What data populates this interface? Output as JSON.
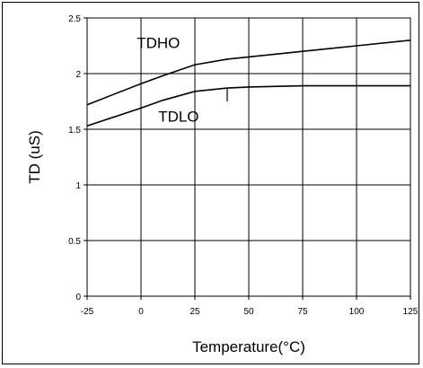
{
  "chart_data": {
    "type": "line",
    "title": "",
    "xlabel": "Temperature(°C)",
    "ylabel": "TD (uS)",
    "xlim": [
      -25,
      125
    ],
    "ylim": [
      0,
      2.5
    ],
    "x_ticks": [
      -25,
      0,
      25,
      50,
      75,
      100,
      125
    ],
    "x_tick_labels": [
      "-25",
      "0",
      "25",
      "50",
      "75",
      "100",
      "125"
    ],
    "y_ticks": [
      0,
      0.5,
      1,
      1.5,
      2,
      2.5
    ],
    "y_tick_labels": [
      "0",
      "0.5",
      "1",
      "1.5",
      "2",
      "2.5"
    ],
    "grid": true,
    "legend": "none",
    "line_color": "#000000",
    "series": [
      {
        "name": "TDHO",
        "x": [
          -25,
          0,
          10,
          25,
          40,
          50,
          75,
          100,
          125
        ],
        "y": [
          1.72,
          1.91,
          1.98,
          2.08,
          2.13,
          2.15,
          2.2,
          2.25,
          2.3
        ]
      },
      {
        "name": "TDLO",
        "x": [
          -25,
          0,
          10,
          25,
          40,
          50,
          75,
          100,
          125
        ],
        "y": [
          1.53,
          1.69,
          1.76,
          1.84,
          1.87,
          1.88,
          1.89,
          1.89,
          1.89
        ]
      }
    ]
  }
}
